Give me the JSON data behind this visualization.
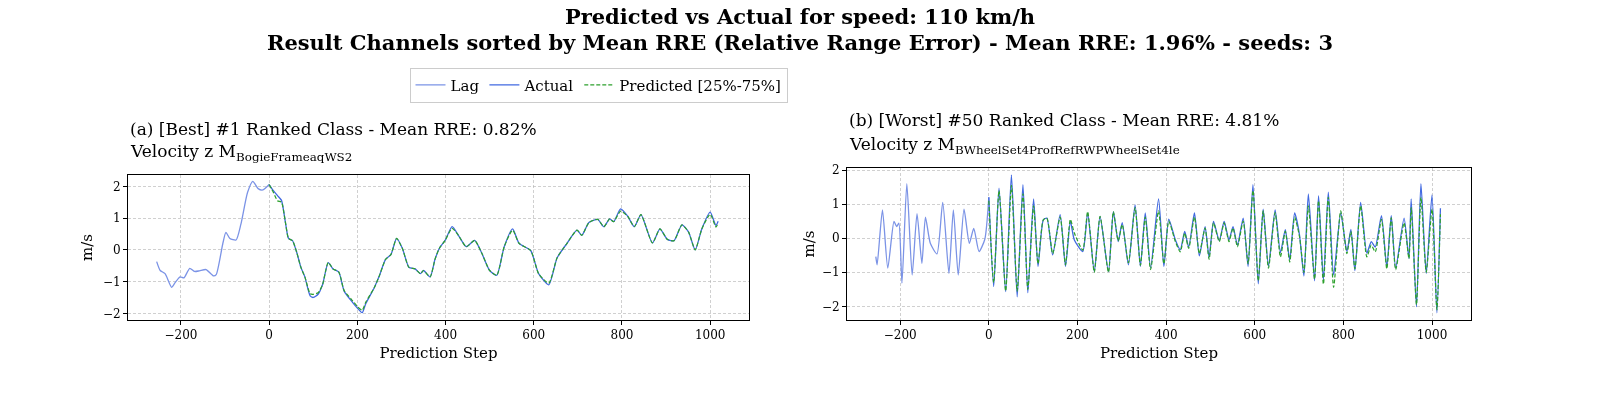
{
  "chart_data": [
    {
      "type": "line",
      "title": "(a) [Best] #1 Ranked Class - Mean RRE: 0.82%",
      "subtitle": "Velocity z M$_{BogieFrameaqWS2}$",
      "xlabel": "Prediction Step",
      "ylabel": "m/s",
      "annotations": [
        "Predicted vs Actual for speed: 110 km/h",
        "Result Channels sorted by Mean RRE (Relative Range Error) - Mean RRE: 1.96% - seeds: 3"
      ],
      "xlim": [
        -320,
        1088
      ],
      "xticks": [
        -200,
        0,
        200,
        400,
        600,
        800,
        1000
      ],
      "ylim": [
        -2.21,
        2.36
      ],
      "yticks": [
        -2,
        -1,
        0,
        1,
        2
      ],
      "grid": true,
      "legend": "top",
      "line_style": "solid",
      "series": [
        {
          "name": "Lag",
          "color": "#7b93e6",
          "x": [
            -255,
            -247,
            -236,
            -221,
            -214,
            -202,
            -193,
            -180,
            -169,
            -158,
            -143,
            -126,
            -120,
            -105,
            -98,
            -89,
            -75,
            -64,
            -49,
            -37,
            -25,
            -14,
            0
          ],
          "values": [
            -0.37,
            -0.65,
            -0.75,
            -1.18,
            -1.05,
            -0.85,
            -0.88,
            -0.58,
            -0.68,
            -0.66,
            -0.62,
            -0.82,
            -0.78,
            0.2,
            0.55,
            0.36,
            0.31,
            0.81,
            1.81,
            2.16,
            1.93,
            1.89,
            2.06
          ]
        },
        {
          "name": "Actual",
          "color": "#4169e1",
          "x": [
            0,
            10,
            19,
            28,
            37,
            44,
            53,
            63,
            72,
            81,
            93,
            100,
            111,
            121,
            134,
            145,
            158,
            170,
            186,
            201,
            211,
            219,
            238,
            249,
            264,
            276,
            289,
            302,
            317,
            331,
            343,
            350,
            365,
            376,
            386,
            399,
            415,
            429,
            447,
            466,
            482,
            500,
            516,
            533,
            552,
            567,
            593,
            611,
            634,
            653,
            675,
            698,
            709,
            725,
            745,
            759,
            772,
            781,
            797,
            813,
            828,
            843,
            869,
            886,
            903,
            918,
            936,
            951,
            966,
            981,
            1000,
            1013,
            1018
          ],
          "values": [
            2.06,
            1.86,
            1.71,
            1.56,
            0.86,
            0.36,
            0.29,
            -0.1,
            -0.55,
            -0.85,
            -1.45,
            -1.5,
            -1.4,
            -1.1,
            -0.4,
            -0.6,
            -0.7,
            -1.3,
            -1.6,
            -1.85,
            -1.98,
            -1.7,
            -1.2,
            -0.85,
            -0.3,
            -0.15,
            0.36,
            0.05,
            -0.55,
            -0.6,
            -0.75,
            -0.65,
            -0.85,
            -0.3,
            0.05,
            0.3,
            0.73,
            0.46,
            0.1,
            0.3,
            -0.1,
            -0.65,
            -0.8,
            0.1,
            0.66,
            0.2,
            -0.02,
            -0.75,
            -1.1,
            -0.25,
            0.2,
            0.62,
            0.46,
            0.86,
            0.96,
            0.73,
            0.98,
            0.89,
            1.29,
            1.06,
            0.73,
            1.11,
            0.22,
            0.66,
            0.33,
            0.29,
            0.79,
            0.56,
            0.0,
            0.66,
            1.19,
            0.77,
            0.9
          ]
        },
        {
          "name": "Predicted [25%-75%]",
          "color": "#2ca02c",
          "line_style": "dashed",
          "x": [
            0,
            10,
            19,
            28,
            37,
            44,
            53,
            63,
            72,
            81,
            93,
            100,
            111,
            121,
            134,
            145,
            158,
            170,
            186,
            201,
            211,
            219,
            238,
            249,
            264,
            276,
            289,
            302,
            317,
            331,
            343,
            350,
            365,
            376,
            386,
            399,
            415,
            429,
            447,
            466,
            482,
            500,
            516,
            533,
            552,
            567,
            593,
            611,
            634,
            653,
            675,
            698,
            709,
            725,
            745,
            759,
            772,
            781,
            797,
            813,
            828,
            843,
            869,
            886,
            903,
            918,
            936,
            951,
            966,
            981,
            1000,
            1013,
            1018
          ],
          "values": [
            2.06,
            1.8,
            1.55,
            1.5,
            0.86,
            0.36,
            0.29,
            -0.1,
            -0.55,
            -0.85,
            -1.38,
            -1.4,
            -1.35,
            -1.1,
            -0.4,
            -0.6,
            -0.7,
            -1.28,
            -1.55,
            -1.8,
            -1.9,
            -1.65,
            -1.2,
            -0.85,
            -0.3,
            -0.15,
            0.36,
            0.05,
            -0.55,
            -0.6,
            -0.75,
            -0.65,
            -0.85,
            -0.3,
            0.05,
            0.3,
            0.68,
            0.46,
            0.1,
            0.3,
            -0.1,
            -0.65,
            -0.8,
            0.1,
            0.62,
            0.2,
            -0.02,
            -0.75,
            -1.05,
            -0.25,
            0.2,
            0.62,
            0.46,
            0.86,
            0.96,
            0.73,
            0.98,
            0.89,
            1.22,
            1.06,
            0.73,
            1.11,
            0.22,
            0.66,
            0.33,
            0.29,
            0.79,
            0.56,
            0.0,
            0.66,
            1.12,
            0.72,
            0.85
          ]
        }
      ]
    },
    {
      "type": "line",
      "title": "(b) [Worst] #50 Ranked Class - Mean RRE: 4.81%",
      "subtitle": "Velocity z M$_{BWheelSet4ProfRefRWPWheelSet4le}$",
      "xlabel": "Prediction Step",
      "ylabel": "m/s",
      "xlim": [
        -320,
        1088
      ],
      "xticks": [
        -200,
        0,
        200,
        400,
        600,
        800,
        1000
      ],
      "ylim": [
        -2.4,
        2.06
      ],
      "yticks": [
        -2,
        -1,
        0,
        1,
        2
      ],
      "grid": true,
      "line_style": "solid",
      "series": [
        {
          "color": "#7b93e6",
          "x": [
            -255,
            -252,
            -240,
            -228,
            -214,
            -208,
            -203,
            -196,
            -185,
            -173,
            -162,
            -151,
            -143,
            -132,
            -117,
            -104,
            -90,
            -80,
            -69,
            -56,
            -44,
            -34,
            -22,
            -9,
            0
          ],
          "values": [
            -0.54,
            -0.78,
            0.83,
            -0.88,
            0.49,
            0.34,
            0.44,
            -1.32,
            1.6,
            -1.08,
            0.72,
            -0.74,
            0.62,
            -0.15,
            -0.46,
            1.05,
            -1.03,
            0.83,
            -1.08,
            0.85,
            -0.15,
            0.29,
            -0.39,
            -0.03,
            1.2
          ]
        },
        {
          "color": "#4169e1",
          "x": [
            0,
            11,
            23,
            38,
            51,
            64,
            77,
            88,
            101,
            111,
            123,
            131,
            144,
            161,
            173,
            184,
            193,
            212,
            223,
            238,
            251,
            270,
            281,
            292,
            301,
            315,
            330,
            342,
            353,
            365,
            383,
            395,
            406,
            421,
            432,
            442,
            451,
            464,
            475,
            488,
            497,
            507,
            520,
            531,
            542,
            551,
            561,
            574,
            585,
            596,
            608,
            619,
            631,
            646,
            658,
            669,
            679,
            690,
            701,
            711,
            721,
            735,
            744,
            755,
            766,
            778,
            794,
            808,
            817,
            826,
            839,
            853,
            863,
            872,
            886,
            898,
            908,
            918,
            937,
            948,
            953,
            965,
            975,
            987,
            1000,
            1011,
            1019
          ],
          "values": [
            1.2,
            -1.42,
            1.47,
            -1.57,
            1.86,
            -1.72,
            1.57,
            -1.6,
            1.15,
            -0.83,
            0.54,
            0.59,
            -0.49,
            0.69,
            -0.83,
            0.49,
            -0.05,
            -0.39,
            0.74,
            -0.98,
            0.64,
            -0.98,
            0.78,
            -0.1,
            0.46,
            -0.78,
            0.98,
            -0.83,
            0.74,
            -0.88,
            1.15,
            -0.83,
            0.56,
            -0.05,
            -0.34,
            0.2,
            -0.26,
            0.74,
            -0.52,
            0.34,
            -0.56,
            0.49,
            -0.07,
            0.49,
            -0.05,
            0.34,
            -0.2,
            0.59,
            -0.83,
            1.57,
            -1.34,
            0.85,
            -0.83,
            0.83,
            -0.42,
            0.25,
            -0.64,
            0.74,
            0.1,
            -1.11,
            1.3,
            -1.25,
            1.25,
            -1.23,
            1.35,
            -1.08,
            0.74,
            -0.39,
            0.26,
            -0.95,
            1.05,
            -0.44,
            -0.1,
            -0.26,
            0.66,
            -0.85,
            0.66,
            -0.88,
            0.59,
            -0.59,
            1.15,
            -2.01,
            1.6,
            -1.03,
            1.27,
            -2.19,
            0.88
          ]
        },
        {
          "color": "#2ca02c",
          "line_style": "dashed",
          "x": [
            0,
            11,
            23,
            38,
            51,
            64,
            77,
            88,
            101,
            111,
            123,
            131,
            144,
            161,
            173,
            184,
            193,
            212,
            223,
            238,
            251,
            270,
            281,
            292,
            301,
            315,
            330,
            342,
            353,
            365,
            383,
            395,
            406,
            421,
            432,
            442,
            451,
            464,
            475,
            488,
            497,
            507,
            520,
            531,
            542,
            551,
            561,
            574,
            585,
            596,
            608,
            619,
            631,
            646,
            658,
            669,
            679,
            690,
            701,
            711,
            721,
            735,
            744,
            755,
            766,
            778,
            794,
            808,
            817,
            826,
            839,
            853,
            863,
            872,
            886,
            898,
            908,
            918,
            937,
            948,
            953,
            965,
            975,
            987,
            1000,
            1011,
            1019
          ],
          "values": [
            1.1,
            -1.3,
            1.4,
            -1.55,
            1.55,
            -1.55,
            1.3,
            -1.5,
            0.95,
            -0.75,
            0.54,
            0.59,
            -0.45,
            0.62,
            -0.78,
            0.55,
            0.15,
            -0.35,
            0.78,
            -1.0,
            0.64,
            -1.0,
            0.78,
            -0.08,
            0.4,
            -0.72,
            0.9,
            -0.8,
            0.62,
            -0.92,
            0.8,
            -0.75,
            0.5,
            -0.1,
            -0.4,
            0.15,
            -0.3,
            0.62,
            -0.45,
            0.3,
            -0.62,
            0.45,
            -0.1,
            0.45,
            -0.1,
            0.3,
            -0.25,
            0.5,
            -0.75,
            1.4,
            -1.25,
            0.8,
            -0.88,
            0.75,
            -0.55,
            0.2,
            -0.7,
            0.62,
            0.05,
            -1.0,
            0.95,
            -1.2,
            1.1,
            -1.35,
            1.2,
            -1.44,
            0.8,
            -0.45,
            0.2,
            -0.9,
            0.95,
            -0.55,
            -0.2,
            -0.4,
            0.55,
            -0.9,
            0.6,
            -0.92,
            0.45,
            -0.6,
            0.9,
            -1.95,
            1.2,
            -1.0,
            0.85,
            -2.1,
            0.7
          ]
        }
      ]
    }
  ]
}
